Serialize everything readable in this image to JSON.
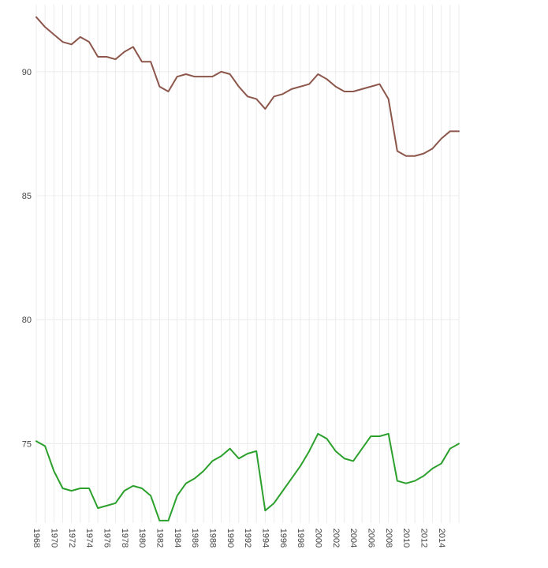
{
  "chart_data": {
    "type": "line",
    "title": "",
    "xlabel": "",
    "ylabel": "",
    "x": [
      1968,
      1969,
      1970,
      1971,
      1972,
      1973,
      1974,
      1975,
      1976,
      1977,
      1978,
      1979,
      1980,
      1981,
      1982,
      1983,
      1984,
      1985,
      1986,
      1987,
      1988,
      1989,
      1990,
      1991,
      1992,
      1993,
      1994,
      1995,
      1996,
      1997,
      1998,
      1999,
      2000,
      2001,
      2002,
      2003,
      2004,
      2005,
      2006,
      2007,
      2008,
      2009,
      2010,
      2011,
      2012,
      2013,
      2014,
      2015,
      2016
    ],
    "xlim": [
      1968,
      2016
    ],
    "xticks": [
      1968,
      1970,
      1972,
      1974,
      1976,
      1978,
      1980,
      1982,
      1984,
      1986,
      1988,
      1990,
      1992,
      1994,
      1996,
      1998,
      2000,
      2002,
      2004,
      2006,
      2008,
      2010,
      2012,
      2014
    ],
    "xtick_labels": [
      "1968",
      "1970",
      "1972",
      "1974",
      "1976",
      "1978",
      "1980",
      "1982",
      "1984",
      "1986",
      "1988",
      "1990",
      "1992",
      "1994",
      "1996",
      "1998",
      "2000",
      "2002",
      "2004",
      "2006",
      "2008",
      "2010",
      "2012",
      "2014"
    ],
    "ylim": [
      71.8,
      92.7
    ],
    "yticks": [
      75,
      80,
      85,
      90
    ],
    "ytick_labels": [
      "75",
      "80",
      "85",
      "90"
    ],
    "grid": true,
    "legend": "none",
    "series": [
      {
        "color": "#8c564b",
        "values": [
          92.2,
          91.8,
          91.5,
          91.2,
          91.1,
          91.4,
          91.2,
          90.6,
          90.6,
          90.5,
          90.8,
          91.0,
          90.4,
          90.4,
          89.4,
          89.2,
          89.8,
          89.9,
          89.8,
          89.8,
          89.8,
          90.0,
          89.9,
          89.4,
          89.0,
          88.9,
          88.5,
          89.0,
          89.1,
          89.3,
          89.4,
          89.5,
          89.9,
          89.7,
          89.4,
          89.2,
          89.2,
          89.3,
          89.4,
          89.5,
          88.9,
          86.8,
          86.6,
          86.6,
          86.7,
          86.9,
          87.3,
          87.6,
          87.6
        ]
      },
      {
        "color": "#2ca02c",
        "values": [
          75.1,
          74.9,
          73.9,
          73.2,
          73.1,
          73.2,
          73.2,
          72.4,
          72.5,
          72.6,
          73.1,
          73.3,
          73.2,
          72.9,
          71.9,
          71.9,
          72.9,
          73.4,
          73.6,
          73.9,
          74.3,
          74.5,
          74.8,
          74.4,
          74.6,
          74.7,
          72.3,
          72.6,
          73.1,
          73.6,
          74.1,
          74.7,
          75.4,
          75.2,
          74.7,
          74.4,
          74.3,
          74.8,
          75.3,
          75.3,
          75.4,
          73.5,
          73.4,
          73.5,
          73.7,
          74.0,
          74.2,
          74.8,
          75.0
        ]
      }
    ]
  }
}
